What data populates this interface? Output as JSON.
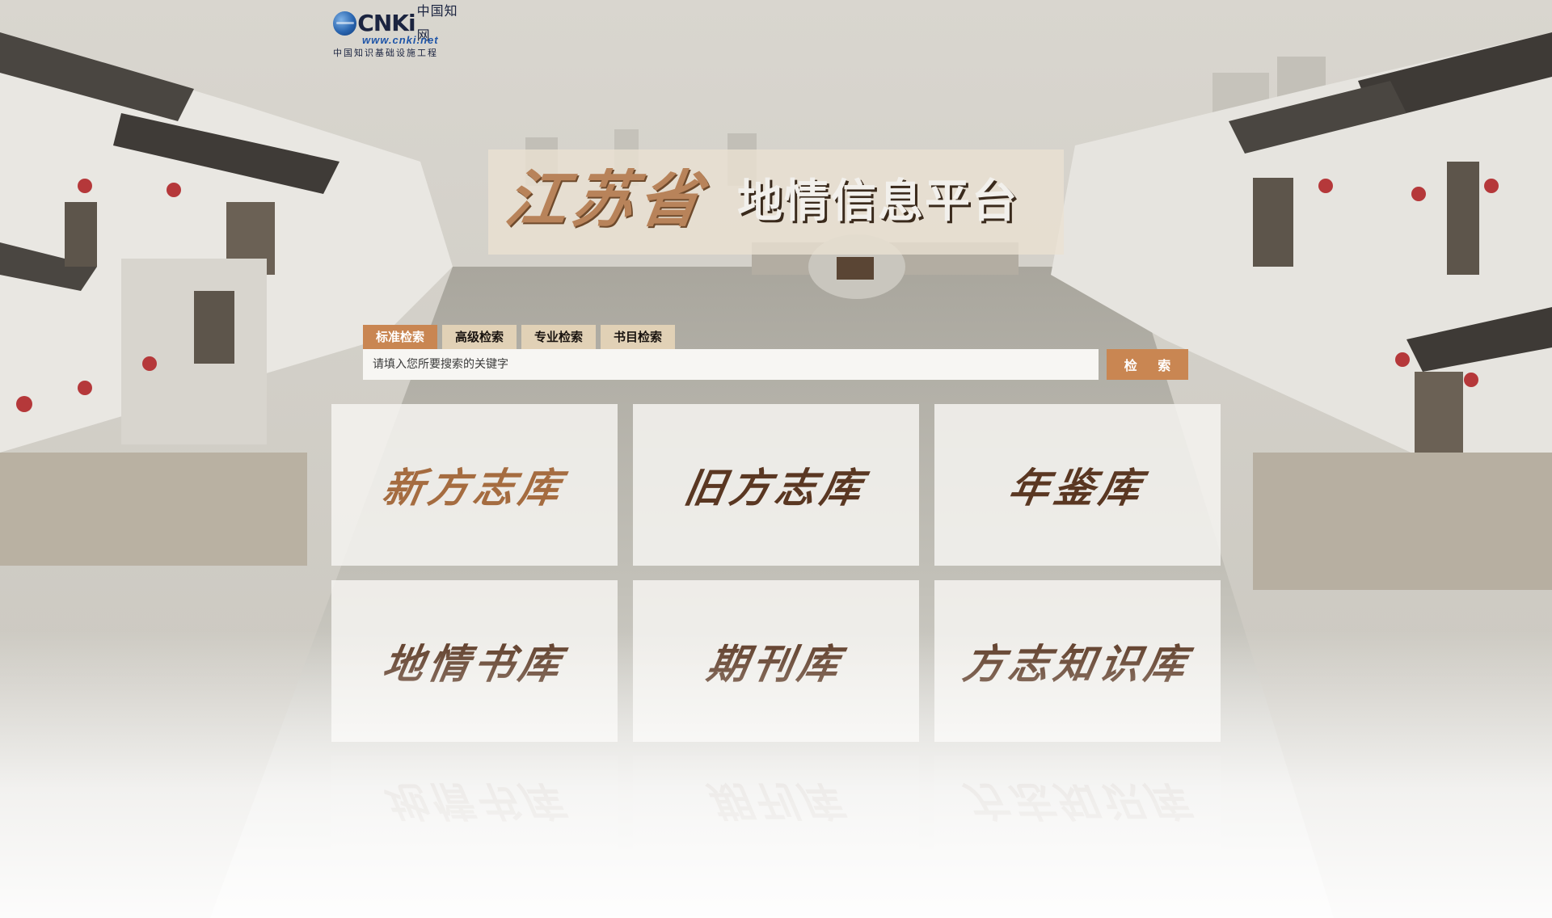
{
  "logo": {
    "brand": "CNKi",
    "brand_cn": "中国知网",
    "site": "www.cnki.net",
    "subtitle": "中国知识基础设施工程"
  },
  "title": {
    "province": "江苏省",
    "platform": "地情信息平台"
  },
  "search": {
    "tabs": [
      {
        "label": "标准检索",
        "active": true
      },
      {
        "label": "高级检索",
        "active": false
      },
      {
        "label": "专业检索",
        "active": false
      },
      {
        "label": "书目检索",
        "active": false
      }
    ],
    "placeholder": "请填入您所要搜索的关键字",
    "button_label": "检 索"
  },
  "libraries": [
    {
      "label": "新方志库"
    },
    {
      "label": "旧方志库"
    },
    {
      "label": "年鉴库"
    },
    {
      "label": "地情书库"
    },
    {
      "label": "期刊库"
    },
    {
      "label": "方志知识库"
    }
  ],
  "colors": {
    "accent": "#c98652",
    "tile_text_dark": "#5a3722",
    "tile_text_warm": "#a56c40",
    "logo_blue": "#1f55a8"
  },
  "icons": {
    "logo": "cnki-globe-icon"
  }
}
